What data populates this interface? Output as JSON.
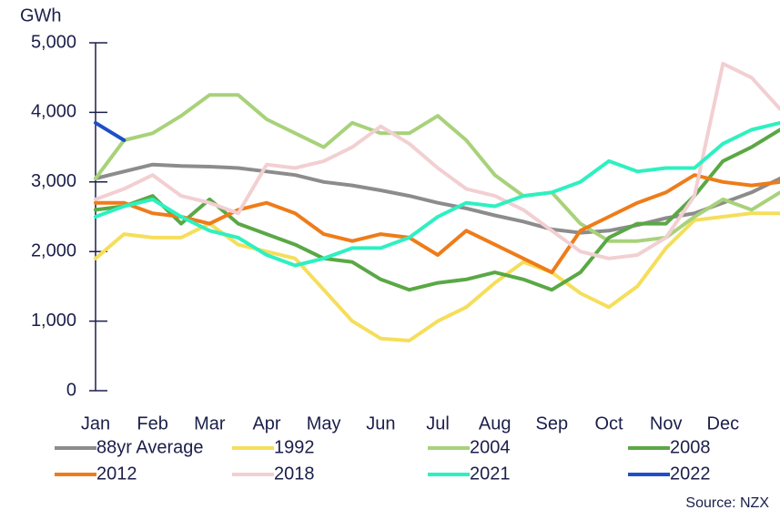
{
  "chart_data": {
    "type": "line",
    "y_label": "GWh",
    "source": "Source: NZX",
    "categories": [
      "Jan",
      null,
      "Feb",
      null,
      "Mar",
      null,
      "Apr",
      null,
      "May",
      null,
      "Jun",
      null,
      "Jul",
      null,
      "Aug",
      null,
      "Sep",
      null,
      "Oct",
      null,
      "Nov",
      null,
      "Dec",
      null,
      null
    ],
    "ylim": [
      0,
      5000
    ],
    "yticks": [
      0,
      {
        "value": 1000,
        "label": "1,000"
      },
      {
        "value": 2000,
        "label": "2,000"
      },
      {
        "value": 3000,
        "label": "3,000"
      },
      {
        "value": 4000,
        "label": "4,000"
      },
      {
        "value": 5000,
        "label": "5,000"
      }
    ],
    "grid": false,
    "series": [
      {
        "name": "88yr Average",
        "color": "#8c8c8c",
        "values": [
          3050,
          3150,
          3250,
          3230,
          3220,
          3200,
          3150,
          3100,
          3000,
          2950,
          2880,
          2800,
          2700,
          2620,
          2520,
          2430,
          2320,
          2270,
          2300,
          2380,
          2480,
          2550,
          2700,
          2850,
          3050
        ]
      },
      {
        "name": "1992",
        "color": "#f5de5a",
        "values": [
          1900,
          2250,
          2200,
          2200,
          2400,
          2100,
          2000,
          1900,
          1450,
          1000,
          750,
          720,
          1000,
          1200,
          1550,
          1850,
          1700,
          1400,
          1200,
          1500,
          2050,
          2450,
          2500,
          2550,
          2550
        ]
      },
      {
        "name": "2004",
        "color": "#a8d27a",
        "values": [
          3050,
          3600,
          3700,
          3950,
          4250,
          4250,
          3900,
          3700,
          3500,
          3850,
          3700,
          3700,
          3950,
          3600,
          3100,
          2800,
          2850,
          2400,
          2150,
          2150,
          2200,
          2500,
          2750,
          2600,
          2850
        ]
      },
      {
        "name": "2008",
        "color": "#5aa845",
        "values": [
          2600,
          2650,
          2800,
          2400,
          2750,
          2400,
          2250,
          2100,
          1900,
          1850,
          1600,
          1450,
          1550,
          1600,
          1700,
          1600,
          1450,
          1700,
          2200,
          2400,
          2400,
          2800,
          3300,
          3500,
          3750
        ]
      },
      {
        "name": "2012",
        "color": "#ee7c1a",
        "values": [
          2700,
          2700,
          2550,
          2500,
          2400,
          2600,
          2700,
          2550,
          2250,
          2150,
          2250,
          2200,
          1950,
          2300,
          2100,
          1900,
          1700,
          2300,
          2500,
          2700,
          2850,
          3100,
          3000,
          2950,
          3000
        ]
      },
      {
        "name": "2018",
        "color": "#f2cfd2",
        "values": [
          2750,
          2900,
          3100,
          2800,
          2700,
          2550,
          3250,
          3200,
          3300,
          3500,
          3800,
          3550,
          3200,
          2900,
          2800,
          2600,
          2300,
          2000,
          1900,
          1950,
          2200,
          2800,
          4700,
          4500,
          4050
        ]
      },
      {
        "name": "2021",
        "color": "#2ef0c0",
        "values": [
          2500,
          2650,
          2750,
          2500,
          2300,
          2200,
          1950,
          1800,
          1900,
          2050,
          2050,
          2200,
          2500,
          2700,
          2650,
          2800,
          2850,
          3000,
          3300,
          3150,
          3200,
          3200,
          3550,
          3750,
          3850
        ]
      },
      {
        "name": "2022",
        "color": "#1f4ec8",
        "values": [
          3850,
          3600,
          null,
          null,
          null,
          null,
          null,
          null,
          null,
          null,
          null,
          null,
          null,
          null,
          null,
          null,
          null,
          null,
          null,
          null,
          null,
          null,
          null,
          null,
          null
        ]
      }
    ]
  }
}
